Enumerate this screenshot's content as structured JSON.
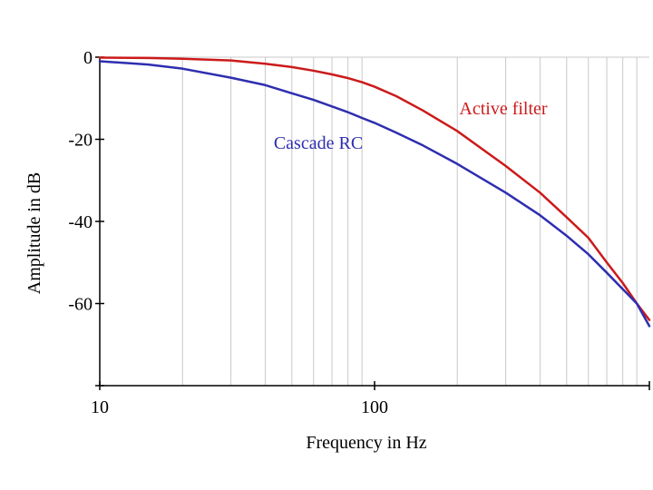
{
  "chart_data": {
    "type": "line",
    "title": "",
    "xlabel": "Frequency in Hz",
    "ylabel": "Amplitude in dB",
    "xscale": "log",
    "xlim": [
      10,
      1000
    ],
    "ylim": [
      -80,
      0
    ],
    "x_ticks": [
      {
        "value": 10,
        "label": "10"
      },
      {
        "value": 100,
        "label": "100"
      }
    ],
    "y_ticks": [
      {
        "value": 0,
        "label": "0"
      },
      {
        "value": -20,
        "label": "-20"
      },
      {
        "value": -40,
        "label": "-40"
      },
      {
        "value": -60,
        "label": "-60"
      }
    ],
    "grid": true,
    "series": [
      {
        "name": "Active filter",
        "color": "#cc1a1a",
        "x": [
          10,
          15,
          20,
          30,
          40,
          50,
          60,
          70,
          80,
          90,
          100,
          120,
          150,
          200,
          300,
          400,
          500,
          600,
          700,
          800,
          900,
          1000
        ],
        "y": [
          -0.1,
          -0.2,
          -0.4,
          -0.8,
          -1.6,
          -2.4,
          -3.3,
          -4.2,
          -5.1,
          -6.1,
          -7.2,
          -9.5,
          -13,
          -18,
          -26.5,
          -33,
          -39,
          -44,
          -50,
          -55,
          -60,
          -64
        ]
      },
      {
        "name": "Cascade RC",
        "color": "#2e2eb0",
        "x": [
          10,
          15,
          20,
          30,
          40,
          50,
          60,
          70,
          80,
          90,
          100,
          120,
          150,
          200,
          300,
          400,
          500,
          600,
          700,
          800,
          900,
          1000
        ],
        "y": [
          -1,
          -1.8,
          -2.8,
          -5,
          -6.8,
          -8.8,
          -10.4,
          -12,
          -13.4,
          -14.8,
          -16,
          -18.4,
          -21.5,
          -26,
          -33,
          -38.5,
          -43.5,
          -48,
          -52.5,
          -56.5,
          -60,
          -65.5
        ]
      }
    ]
  }
}
